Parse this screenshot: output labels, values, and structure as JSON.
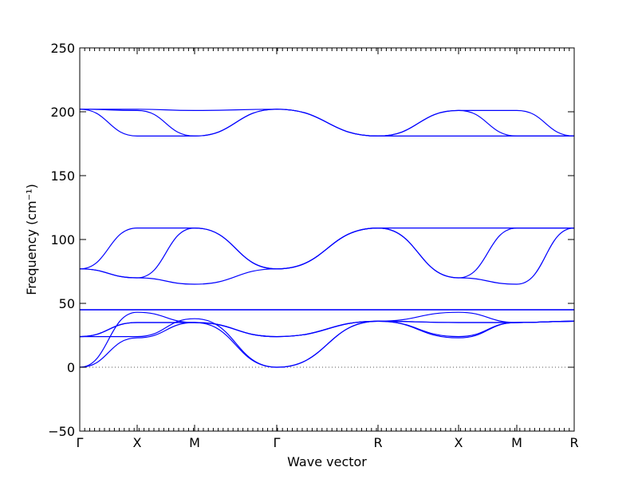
{
  "chart_data": {
    "type": "line",
    "xlabel": "Wave vector",
    "ylabel": "Frequency (cm⁻¹)",
    "ylim": [
      -50,
      250
    ],
    "yticks": [
      -50,
      0,
      50,
      100,
      150,
      200,
      250
    ],
    "x_points": [
      "Γ",
      "X",
      "M",
      "Γ",
      "R",
      "X",
      "M",
      "R"
    ],
    "zero_line": true,
    "grid": false,
    "legend": "none",
    "line_color": "#0000ff",
    "zero_line_color": "#555555",
    "segments": [
      {
        "from": "Γ",
        "to": "X",
        "bands": [
          [
            0,
            43
          ],
          [
            0,
            23
          ],
          [
            24,
            24
          ],
          [
            24,
            35
          ],
          [
            24,
            35
          ],
          [
            45,
            45
          ],
          [
            45,
            45
          ],
          [
            45,
            45
          ],
          [
            77,
            70
          ],
          [
            77,
            109
          ],
          [
            77,
            70
          ],
          [
            202,
            181
          ],
          [
            202,
            201
          ],
          [
            202,
            202
          ]
        ]
      },
      {
        "from": "X",
        "to": "M",
        "bands": [
          [
            43,
            35
          ],
          [
            23,
            35
          ],
          [
            24,
            38
          ],
          [
            35,
            35
          ],
          [
            35,
            35
          ],
          [
            45,
            45
          ],
          [
            45,
            45
          ],
          [
            45,
            45
          ],
          [
            70,
            109
          ],
          [
            109,
            109
          ],
          [
            70,
            65
          ],
          [
            181,
            181
          ],
          [
            201,
            181
          ],
          [
            202,
            201
          ]
        ]
      },
      {
        "from": "M",
        "to": "Γ",
        "bands": [
          [
            35,
            0
          ],
          [
            35,
            24
          ],
          [
            38,
            0
          ],
          [
            35,
            24
          ],
          [
            35,
            24
          ],
          [
            45,
            45
          ],
          [
            45,
            45
          ],
          [
            45,
            45
          ],
          [
            109,
            77
          ],
          [
            109,
            77
          ],
          [
            65,
            77
          ],
          [
            181,
            202
          ],
          [
            181,
            202
          ],
          [
            201,
            202
          ]
        ]
      },
      {
        "from": "Γ",
        "to": "R",
        "bands": [
          [
            0,
            36
          ],
          [
            24,
            36
          ],
          [
            0,
            36
          ],
          [
            24,
            36
          ],
          [
            24,
            36
          ],
          [
            45,
            45
          ],
          [
            45,
            45
          ],
          [
            45,
            45
          ],
          [
            77,
            109
          ],
          [
            77,
            109
          ],
          [
            77,
            109
          ],
          [
            202,
            181
          ],
          [
            202,
            181
          ],
          [
            202,
            181
          ]
        ]
      },
      {
        "from": "R",
        "to": "X",
        "bands": [
          [
            36,
            43
          ],
          [
            36,
            23
          ],
          [
            36,
            24
          ],
          [
            36,
            35
          ],
          [
            36,
            35
          ],
          [
            45,
            45
          ],
          [
            45,
            45
          ],
          [
            45,
            45
          ],
          [
            109,
            70
          ],
          [
            109,
            109
          ],
          [
            109,
            70
          ],
          [
            181,
            181
          ],
          [
            181,
            201
          ],
          [
            181,
            201
          ]
        ]
      },
      {
        "from": "X",
        "to": "M",
        "bands": [
          [
            43,
            35
          ],
          [
            23,
            35
          ],
          [
            24,
            35
          ],
          [
            35,
            35
          ],
          [
            35,
            35
          ],
          [
            45,
            45
          ],
          [
            45,
            45
          ],
          [
            45,
            45
          ],
          [
            70,
            109
          ],
          [
            109,
            109
          ],
          [
            70,
            65
          ],
          [
            181,
            181
          ],
          [
            201,
            181
          ],
          [
            201,
            201
          ]
        ]
      },
      {
        "from": "M",
        "to": "R",
        "bands": [
          [
            35,
            36
          ],
          [
            35,
            36
          ],
          [
            35,
            36
          ],
          [
            35,
            36
          ],
          [
            35,
            36
          ],
          [
            45,
            45
          ],
          [
            45,
            45
          ],
          [
            45,
            45
          ],
          [
            109,
            109
          ],
          [
            109,
            109
          ],
          [
            65,
            109
          ],
          [
            181,
            181
          ],
          [
            181,
            181
          ],
          [
            201,
            181
          ]
        ]
      }
    ]
  }
}
